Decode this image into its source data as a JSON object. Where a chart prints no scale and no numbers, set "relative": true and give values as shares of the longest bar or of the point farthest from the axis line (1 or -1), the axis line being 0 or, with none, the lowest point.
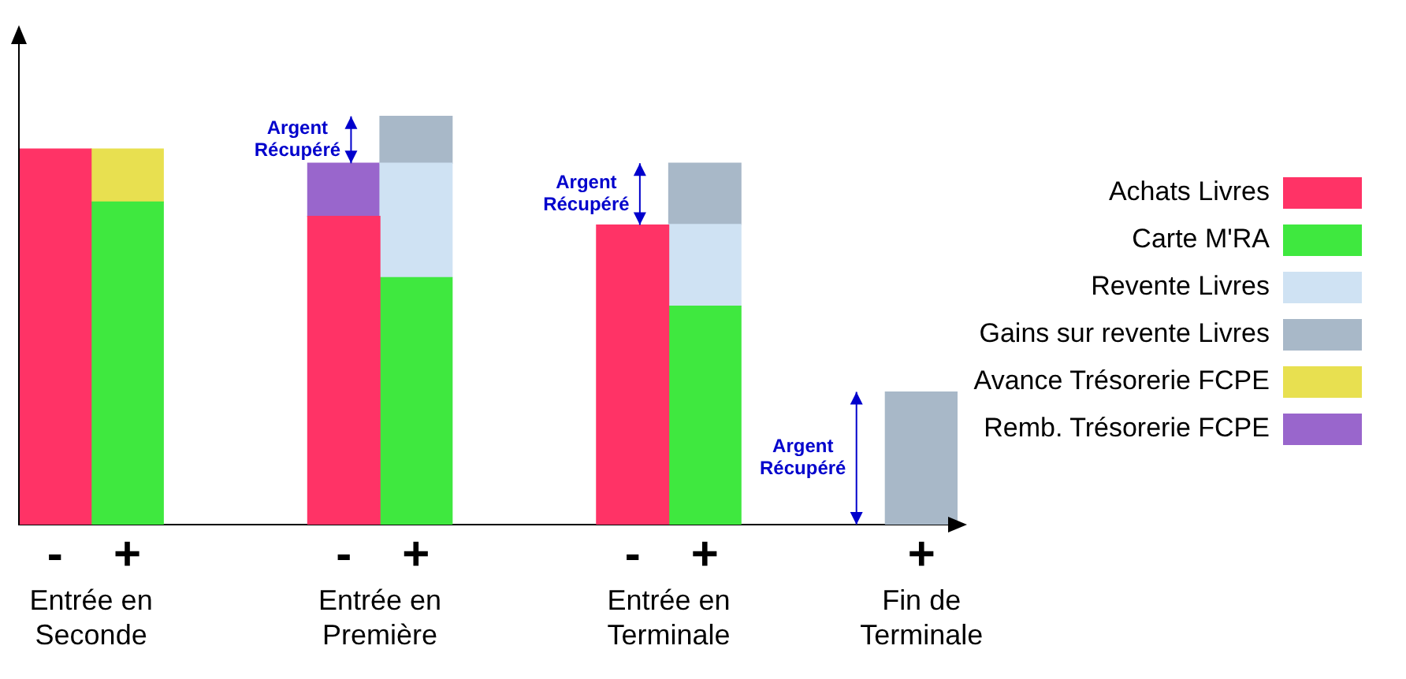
{
  "chart_data": {
    "type": "bar",
    "stacked": true,
    "relative": true,
    "legend": "right",
    "grid": false,
    "categories": [
      "-",
      "+",
      null,
      null,
      "-",
      "+",
      null,
      null,
      "-",
      "+",
      null,
      null,
      "+"
    ],
    "series": [
      {
        "name": "Achats Livres",
        "color": "#ff3366",
        "values": [
          0.92,
          null,
          null,
          null,
          0.755,
          null,
          null,
          null,
          0.734,
          null,
          null,
          null,
          null
        ]
      },
      {
        "name": "Carte M'RA",
        "color": "#3fe83f",
        "values": [
          null,
          0.79,
          null,
          null,
          null,
          0.605,
          null,
          null,
          null,
          0.535,
          null,
          null,
          null
        ]
      },
      {
        "name": "Revente Livres",
        "color": "#cfe2f3",
        "values": [
          null,
          null,
          null,
          null,
          null,
          0.28,
          null,
          null,
          null,
          0.2,
          null,
          null,
          null
        ]
      },
      {
        "name": "Gains sur revente Livres",
        "color": "#a8b8c8",
        "values": [
          null,
          null,
          null,
          null,
          null,
          0.115,
          null,
          null,
          null,
          0.15,
          null,
          null,
          0.325
        ]
      },
      {
        "name": "Avance Trésorerie FCPE",
        "color": "#e8e050",
        "values": [
          null,
          0.13,
          null,
          null,
          null,
          null,
          null,
          null,
          null,
          null,
          null,
          null,
          null
        ]
      },
      {
        "name": "Remb. Trésorerie FCPE",
        "color": "#9966cc",
        "values": [
          null,
          null,
          null,
          null,
          0.13,
          null,
          null,
          null,
          null,
          null,
          null,
          null,
          null
        ]
      }
    ],
    "annotations": [
      "Argent Récupéré",
      "Argent Récupéré",
      "Argent Récupéré",
      "Entrée en Seconde",
      "Entrée en Première",
      "Entrée en Terminale",
      "Fin de Terminale"
    ]
  }
}
